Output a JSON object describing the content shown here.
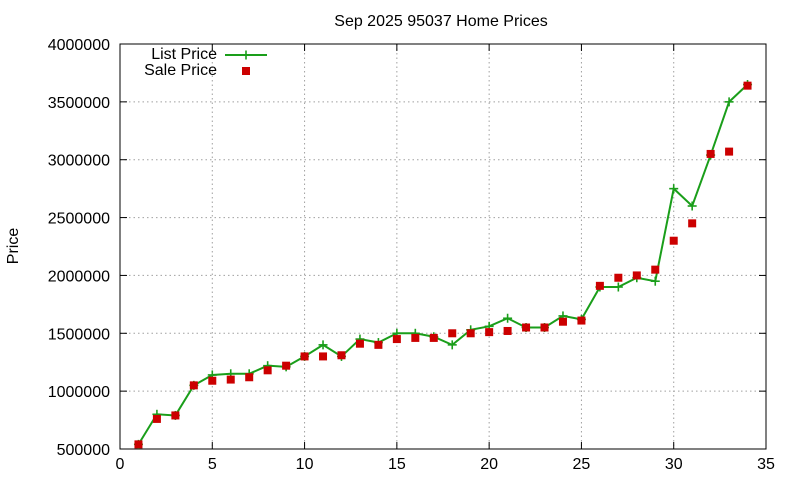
{
  "chart_data": {
    "type": "line",
    "title": "Sep 2025 95037 Home Prices",
    "xlabel": "",
    "ylabel": "Price",
    "xlim": [
      0,
      35
    ],
    "ylim": [
      500000,
      4000000
    ],
    "xticks": [
      0,
      5,
      10,
      15,
      20,
      25,
      30,
      35
    ],
    "yticks": [
      500000,
      1000000,
      1500000,
      2000000,
      2500000,
      3000000,
      3500000,
      4000000
    ],
    "grid": true,
    "legend_position": "top-left",
    "x": [
      1,
      2,
      3,
      4,
      5,
      6,
      7,
      8,
      9,
      10,
      11,
      12,
      13,
      14,
      15,
      16,
      17,
      18,
      19,
      20,
      21,
      22,
      23,
      24,
      25,
      26,
      27,
      28,
      29,
      30,
      31,
      32,
      33,
      34
    ],
    "series": [
      {
        "name": "List Price",
        "style": "line+cross",
        "color": "#1a9e1a",
        "values": [
          540000,
          800000,
          790000,
          1050000,
          1140000,
          1150000,
          1150000,
          1220000,
          1210000,
          1300000,
          1400000,
          1300000,
          1450000,
          1420000,
          1500000,
          1500000,
          1470000,
          1400000,
          1530000,
          1560000,
          1630000,
          1550000,
          1550000,
          1650000,
          1620000,
          1900000,
          1900000,
          1980000,
          1950000,
          2750000,
          2600000,
          3040000,
          3500000,
          3650000
        ]
      },
      {
        "name": "Sale Price",
        "style": "square",
        "color": "#cc0000",
        "values": [
          540000,
          760000,
          790000,
          1050000,
          1090000,
          1100000,
          1120000,
          1180000,
          1220000,
          1300000,
          1300000,
          1310000,
          1410000,
          1400000,
          1450000,
          1460000,
          1460000,
          1500000,
          1500000,
          1510000,
          1520000,
          1550000,
          1550000,
          1600000,
          1610000,
          1910000,
          1980000,
          2000000,
          2050000,
          2300000,
          2450000,
          3050000,
          3070000,
          3640000
        ]
      }
    ]
  }
}
